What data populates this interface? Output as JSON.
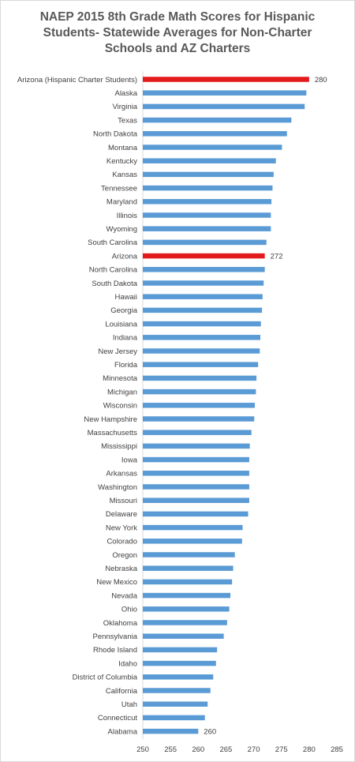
{
  "chart_data": {
    "type": "bar",
    "orientation": "horizontal",
    "title_lines": [
      "NAEP 2015 8th Grade Math Scores for Hispanic",
      "Students- Statewide Averages for Non-Charter",
      "Schools and AZ Charters"
    ],
    "categories": [
      "Arizona (Hispanic Charter Students)",
      "Alaska",
      "Virginia",
      "Texas",
      "North Dakota",
      "Montana",
      "Kentucky",
      "Kansas",
      "Tennessee",
      "Maryland",
      "Illinois",
      "Wyoming",
      "South Carolina",
      "Arizona",
      "North Carolina",
      "South Dakota",
      "Hawaii",
      "Georgia",
      "Louisiana",
      "Indiana",
      "New Jersey",
      "Florida",
      "Minnesota",
      "Michigan",
      "Wisconsin",
      "New Hampshire",
      "Massachusetts",
      "Mississippi",
      "Iowa",
      "Arkansas",
      "Washington",
      "Missouri",
      "Delaware",
      "New York",
      "Colorado",
      "Oregon",
      "Nebraska",
      "New Mexico",
      "Nevada",
      "Ohio",
      "Oklahoma",
      "Pennsylvania",
      "Rhode Island",
      "Idaho",
      "District of Columbia",
      "California",
      "Utah",
      "Connecticut",
      "Alabama"
    ],
    "values": [
      280,
      279.5,
      279.2,
      276.8,
      276,
      275.1,
      274,
      273.6,
      273.4,
      273.2,
      273.1,
      273.1,
      272.3,
      272,
      272,
      271.8,
      271.6,
      271.5,
      271.3,
      271.2,
      271.1,
      270.8,
      270.5,
      270.4,
      270.2,
      270.1,
      269.6,
      269.3,
      269.2,
      269.2,
      269.2,
      269.2,
      269,
      268,
      267.9,
      266.6,
      266.3,
      266.1,
      265.8,
      265.6,
      265.2,
      264.6,
      263.4,
      263.2,
      262.7,
      262.2,
      261.7,
      261.2,
      260
    ],
    "highlight_categories": [
      "Arizona (Hispanic Charter Students)",
      "Arizona"
    ],
    "data_labels": [
      {
        "category": "Arizona (Hispanic Charter Students)",
        "text": "280"
      },
      {
        "category": "Arizona",
        "text": "272"
      },
      {
        "category": "Alabama",
        "text": "260"
      }
    ],
    "xlim": [
      250,
      285
    ],
    "xticks": [
      "250",
      "255",
      "260",
      "265",
      "270",
      "275",
      "280",
      "285"
    ],
    "grid": false,
    "colors": {
      "bar": "#5b9bd5",
      "highlight": "#e31a1c",
      "text": "#404040",
      "title": "#595959",
      "axis": "#d9d9d9"
    }
  }
}
